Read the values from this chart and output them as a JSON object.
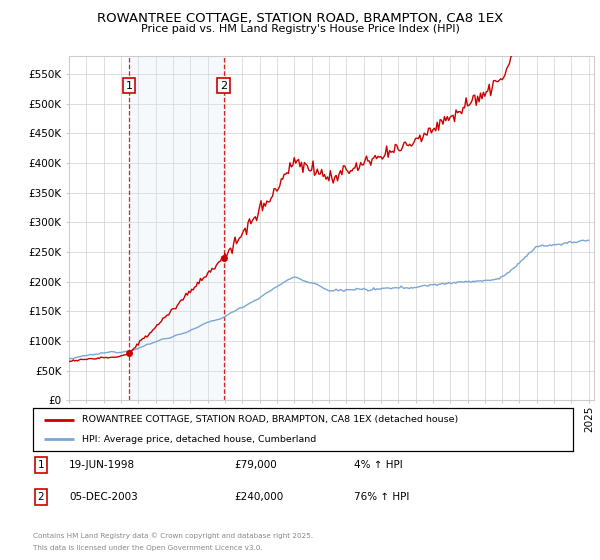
{
  "title": "ROWANTREE COTTAGE, STATION ROAD, BRAMPTON, CA8 1EX",
  "subtitle": "Price paid vs. HM Land Registry's House Price Index (HPI)",
  "sale1_year": 1998.458,
  "sale1_price": 79000,
  "sale2_year": 2003.917,
  "sale2_price": 240000,
  "legend_label1": "ROWANTREE COTTAGE, STATION ROAD, BRAMPTON, CA8 1EX (detached house)",
  "legend_label2": "HPI: Average price, detached house, Cumberland",
  "footer_line1": "Contains HM Land Registry data © Crown copyright and database right 2025.",
  "footer_line2": "This data is licensed under the Open Government Licence v3.0.",
  "table_row1": [
    "1",
    "19-JUN-1998",
    "£79,000",
    "4% ↑ HPI"
  ],
  "table_row2": [
    "2",
    "05-DEC-2003",
    "£240,000",
    "76% ↑ HPI"
  ],
  "sale_marker_color": "#cc0000",
  "hpi_line_color": "#7ba7d4",
  "property_line_color": "#cc0000",
  "vline_color": "#cc0000",
  "shade_color": "#dce8f5",
  "ylim": [
    0,
    580000
  ],
  "yticks": [
    0,
    50000,
    100000,
    150000,
    200000,
    250000,
    300000,
    350000,
    400000,
    450000,
    500000,
    550000
  ],
  "xmin": 1995,
  "xmax": 2025.3
}
